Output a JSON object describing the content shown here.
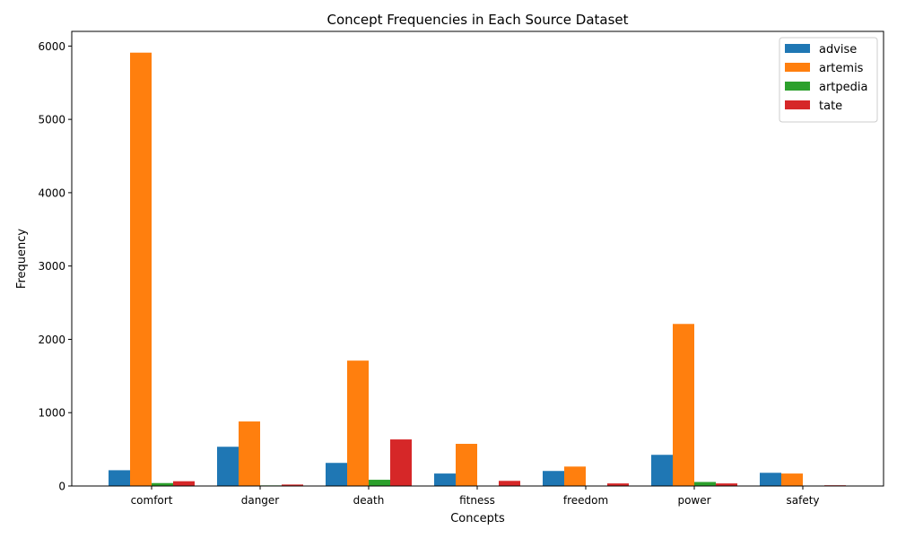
{
  "chart_data": {
    "type": "bar",
    "title": "Concept Frequencies in Each Source Dataset",
    "xlabel": "Concepts",
    "ylabel": "Frequency",
    "categories": [
      "comfort",
      "danger",
      "death",
      "fitness",
      "freedom",
      "power",
      "safety"
    ],
    "ylim": [
      0,
      6200
    ],
    "yticks": [
      0,
      1000,
      2000,
      3000,
      4000,
      5000,
      6000
    ],
    "grid": false,
    "legend_position": "top-right",
    "series": [
      {
        "name": "advise",
        "color": "#1f77b4",
        "values": [
          215,
          535,
          315,
          170,
          205,
          425,
          180
        ]
      },
      {
        "name": "artemis",
        "color": "#ff7f0e",
        "values": [
          5910,
          880,
          1710,
          575,
          265,
          2210,
          170
        ]
      },
      {
        "name": "artpedia",
        "color": "#2ca02c",
        "values": [
          40,
          8,
          85,
          5,
          5,
          55,
          2
        ]
      },
      {
        "name": "tate",
        "color": "#d62728",
        "values": [
          65,
          20,
          635,
          70,
          35,
          35,
          10
        ]
      }
    ]
  }
}
